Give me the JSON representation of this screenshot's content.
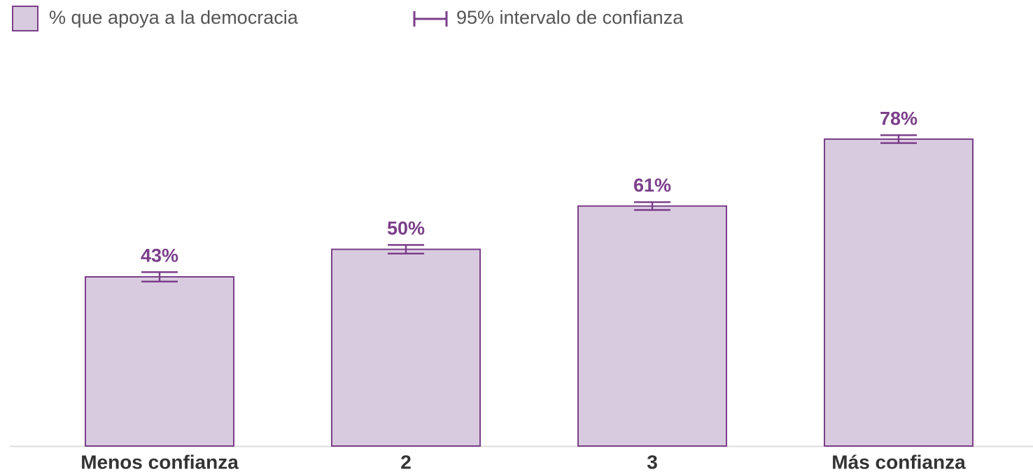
{
  "chart_data": {
    "type": "bar",
    "categories": [
      "Menos confianza",
      "2",
      "3",
      "Más confianza"
    ],
    "series": [
      {
        "name": "% que apoya a la democracia",
        "color": "#d9cbdf",
        "edge_color": "#7b3f8a",
        "values": [
          43,
          50,
          61,
          78
        ],
        "value_labels": [
          "43%",
          "50%",
          "61%",
          "78%"
        ],
        "errors": [
          1.2,
          1.1,
          1.0,
          1.0
        ]
      }
    ],
    "error_bar_label": "95% intervalo de confianza"
  }
}
